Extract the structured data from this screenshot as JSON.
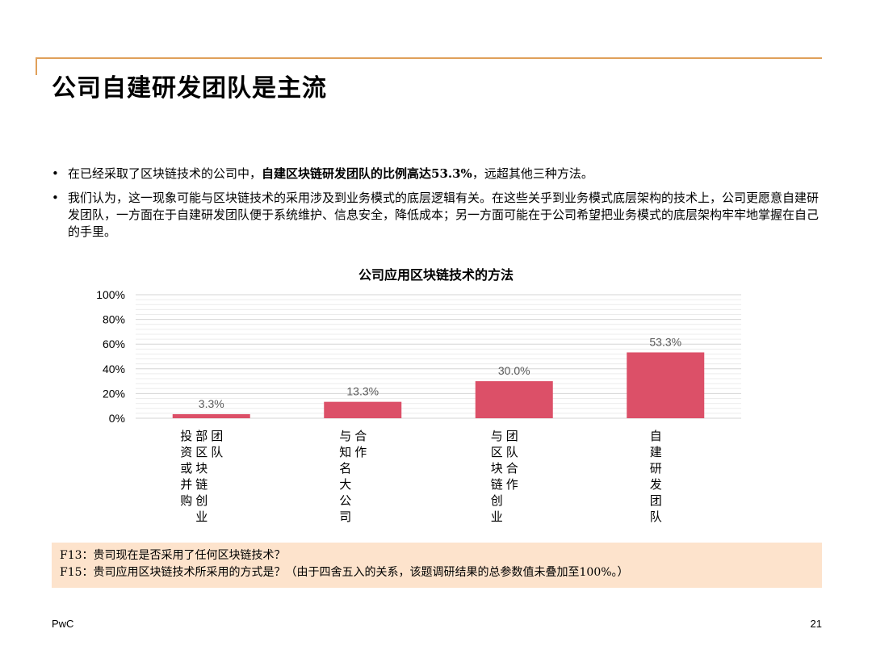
{
  "title": "公司自建研发团队是主流",
  "bullets": [
    {
      "before": "在已经采取了区块链技术的公司中，",
      "bold": "自建区块链研发团队的比例高达53.3%",
      "after": "，远超其他三种方法。"
    },
    {
      "text": "我们认为，这一现象可能与区块链技术的采用涉及到业务模式的底层逻辑有关。在这些关乎到业务模式底层架构的技术上，公司更愿意自建研发团队，一方面在于自建研发团队便于系统维护、信息安全，降低成本；另一方面可能在于公司希望把业务模式的底层架构牢牢地掌握在自己的手里。"
    }
  ],
  "chart_data": {
    "type": "bar",
    "title": "公司应用区块链技术的方法",
    "categories": [
      [
        "投资或并购",
        "部区块链创业",
        "团队"
      ],
      [
        "与知名大公司",
        "合作"
      ],
      [
        "与区块链创业",
        "团队合作"
      ],
      [
        "自建研发团队"
      ]
    ],
    "values": [
      3.3,
      13.3,
      30.0,
      53.3
    ],
    "data_labels": [
      "3.3%",
      "13.3%",
      "30.0%",
      "53.3%"
    ],
    "yticks": [
      "0%",
      "20%",
      "40%",
      "60%",
      "80%",
      "100%"
    ],
    "ylim": [
      0,
      100
    ],
    "bar_color": "#DC5068",
    "grid": true,
    "legend": "none"
  },
  "notes": [
    "F13：贵司现在是否采用了任何区块链技术？",
    "F15：贵司应用区块链技术所采用的方式是？（由于四舍五入的关系，该题调研结果的总参数值未叠加至100%。）"
  ],
  "footer": {
    "left": "PwC",
    "page": "21"
  },
  "colors": {
    "accent_rule": "#E0A05A",
    "note_bg": "#FDE3CC"
  }
}
